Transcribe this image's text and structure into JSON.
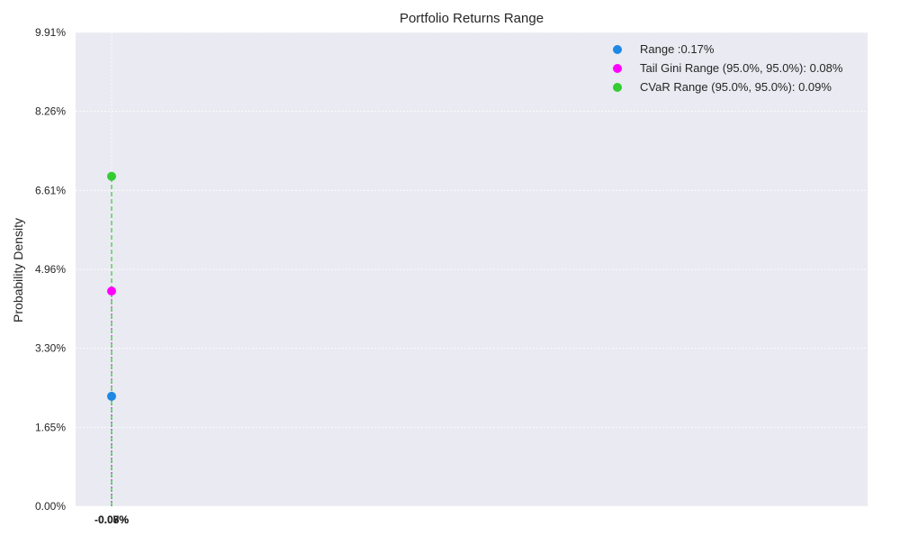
{
  "chart_data": {
    "type": "scatter",
    "title": "Portfolio Returns Range",
    "xlabel": "",
    "ylabel": "Probability Density",
    "y_ticks": [
      "0.00%",
      "1.65%",
      "3.30%",
      "4.96%",
      "6.61%",
      "8.26%",
      "9.91%"
    ],
    "ylim": [
      0,
      9.91
    ],
    "x_ticks": [
      "-0.05%",
      "-0.07%",
      "-0.08%"
    ],
    "x_value": -0.07,
    "grid": true,
    "legend_position": "top-right",
    "series": [
      {
        "name": "Range :0.17%",
        "x": -0.07,
        "y": 2.3,
        "color": "#1e88e5",
        "line_style": "dotted"
      },
      {
        "name": "Tail Gini Range (95.0%, 95.0%): 0.08%",
        "x": -0.07,
        "y": 4.5,
        "color": "#ff00ff",
        "line_style": "dotted"
      },
      {
        "name": "CVaR Range (95.0%, 95.0%): 0.09%",
        "x": -0.07,
        "y": 6.9,
        "color": "#33cc33",
        "line_style": "dashed"
      }
    ]
  }
}
